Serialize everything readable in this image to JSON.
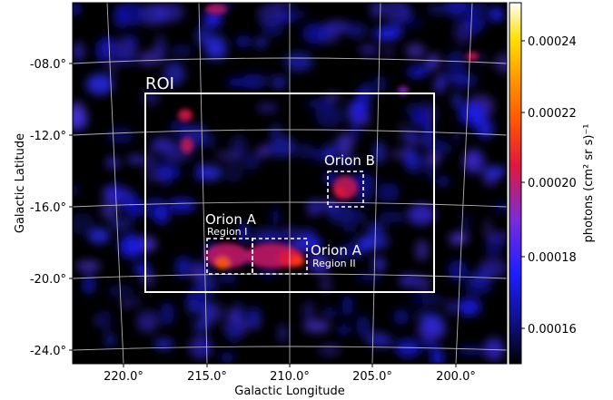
{
  "map": {
    "xlabel": "Galactic Longitude",
    "ylabel": "Galactic Latitude",
    "x_ticks": [
      "220.0°",
      "215.0°",
      "210.0°",
      "205.0°",
      "200.0°"
    ],
    "y_ticks": [
      "-08.0°",
      "-12.0°",
      "-16.0°",
      "-20.0°",
      "-24.0°"
    ],
    "colormap": "gnuplot2"
  },
  "colorbar": {
    "label": "photons (cm² sr s)⁻¹",
    "ticks": [
      "0.00024",
      "0.00022",
      "0.00020",
      "0.00018",
      "0.00016"
    ]
  },
  "regions": {
    "roi": "ROI",
    "orion_b": "Orion B",
    "orion_a1_title": "Orion A",
    "orion_a1_sub": "Region I",
    "orion_a2_title": "Orion A",
    "orion_a2_sub": "Region II"
  }
}
